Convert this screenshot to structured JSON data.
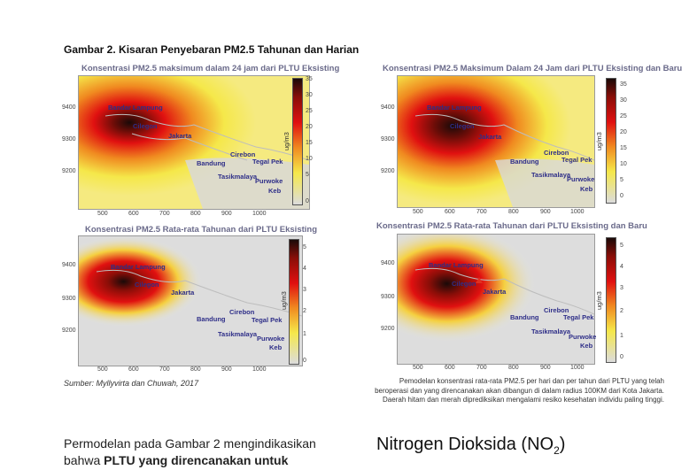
{
  "figure_title": "Gambar 2. Kisaran Penyebaran PM2.5 Tahunan dan Harian",
  "panels": [
    {
      "title": "Konsentrasi PM2.5 maksimum dalam 24 jam dari PLTU Eksisting",
      "y_ticks": [
        "9400",
        "9300",
        "9200"
      ],
      "x_ticks": [
        "500",
        "600",
        "700",
        "800",
        "900",
        "1000"
      ],
      "colorbar_ticks": [
        "35",
        "30",
        "25",
        "20",
        "15",
        "10",
        "5",
        "0"
      ],
      "colorbar_unit": "ug/m3",
      "cities": [
        "Bandar Lampung",
        "Cilegon",
        "Jakarta",
        "Cirebon",
        "Tegal Pek",
        "Bandung",
        "Tasikmalaya",
        "Purwoke",
        "Keb"
      ]
    },
    {
      "title": "Konsentrasi PM2.5 Maksimum Dalam 24 Jam dari PLTU Eksisting dan Baru",
      "y_ticks": [
        "9400",
        "9300",
        "9200"
      ],
      "x_ticks": [
        "500",
        "600",
        "700",
        "800",
        "900",
        "1000"
      ],
      "colorbar_ticks": [
        "35",
        "30",
        "25",
        "20",
        "15",
        "10",
        "5",
        "0"
      ],
      "colorbar_unit": "ug/m3",
      "cities": [
        "Bandar Lampung",
        "Cilegon",
        "Jakarta",
        "Cirebon",
        "Tegal Pek",
        "Bandung",
        "Tasikmalaya",
        "Purwoke",
        "Keb"
      ]
    },
    {
      "title": "Konsentrasi PM2.5 Rata-rata Tahunan dari PLTU Eksisting",
      "y_ticks": [
        "9400",
        "9300",
        "9200"
      ],
      "x_ticks": [
        "500",
        "600",
        "700",
        "800",
        "900",
        "1000"
      ],
      "colorbar_ticks": [
        "5",
        "4",
        "3",
        "2",
        "1",
        "0"
      ],
      "colorbar_unit": "ug/m3",
      "cities": [
        "Bandar Lampung",
        "Cilegon",
        "Jakarta",
        "Cirebon",
        "Tegal Pek",
        "Bandung",
        "Tasikmalaya",
        "Purwoke",
        "Keb"
      ]
    },
    {
      "title": "Konsentrasi PM2.5 Rata-rata Tahunan dari PLTU Eksisting dan Baru",
      "y_ticks": [
        "9400",
        "9300",
        "9200"
      ],
      "x_ticks": [
        "500",
        "600",
        "700",
        "800",
        "900",
        "1000"
      ],
      "colorbar_ticks": [
        "5",
        "4",
        "3",
        "2",
        "1",
        "0"
      ],
      "colorbar_unit": "ug/m3",
      "cities": [
        "Bandar Lampung",
        "Cilegon",
        "Jakarta",
        "Cirebon",
        "Tegal Pek",
        "Bandung",
        "Tasikmalaya",
        "Purwoke",
        "Keb"
      ]
    }
  ],
  "source": "Sumber: Myllyvirta dan Chuwah, 2017",
  "caption": "Pemodelan konsentrasi rata-rata PM2.5 per hari dan per tahun dari PLTU yang telah beroperasi dan yang direncanakan akan dibangun di dalam radius 100KM dari Kota Jakarta. Daerah hitam dan merah diprediksikan mengalami resiko kesehatan individu paling tinggi.",
  "body_text": {
    "line1": "Permodelan pada Gambar 2 mengindikasikan",
    "line2_prefix": "bahwa ",
    "line2_bold": "PLTU yang direncanakan untuk"
  },
  "heading": {
    "main": "Nitrogen Dioksida (NO",
    "sub": "2",
    "close": ")"
  },
  "colors": {
    "heat_high": "#1a0a08",
    "heat_mid": "#e01010",
    "heat_low": "#f5e84a",
    "background_low": "#d8d8d8",
    "city_label": "#2e2e88"
  }
}
